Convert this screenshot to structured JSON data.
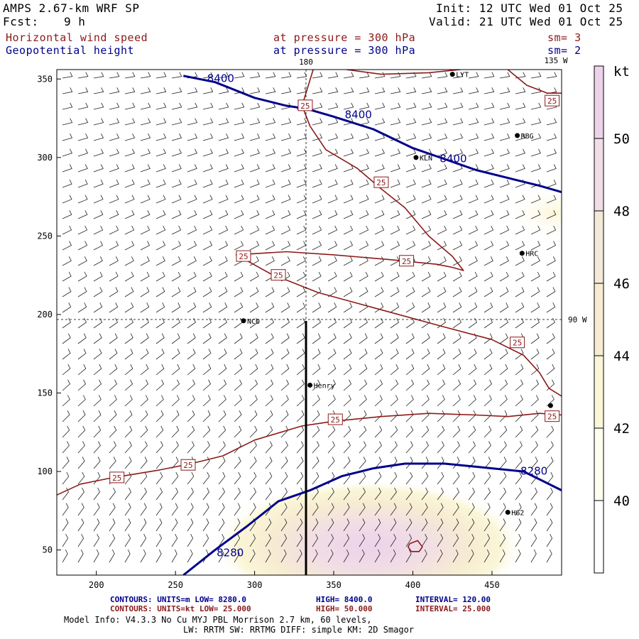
{
  "header": {
    "model": "AMPS 2.67-km WRF SP",
    "fcst_label": "Fcst:",
    "fcst_value": "9 h",
    "init": "Init: 12 UTC Wed 01 Oct 25",
    "valid": "Valid: 21 UTC Wed 01 Oct 25",
    "field1": "Horizontal wind speed",
    "field2": "Geopotential height",
    "pressure1": "at pressure =  300 hPa",
    "pressure2": "at pressure =  300 hPa",
    "sm1": "sm= 3",
    "sm2": "sm= 2"
  },
  "map_labels": {
    "lon_top_180": "180",
    "lon_top_135w": "135 W",
    "lon_right_90w": "90 W"
  },
  "stations": [
    {
      "name": "LYT",
      "x": 425,
      "y": 353
    },
    {
      "name": "RBG",
      "x": 466,
      "y": 314
    },
    {
      "name": "KLN",
      "x": 402,
      "y": 300
    },
    {
      "name": "HRC",
      "x": 469,
      "y": 239
    },
    {
      "name": "NCO",
      "x": 293,
      "y": 196
    },
    {
      "name": "Henry",
      "x": 335,
      "y": 155
    },
    {
      "name": "HG2",
      "x": 460,
      "y": 74
    },
    {
      "name": "",
      "x": 487,
      "y": 142
    }
  ],
  "colors": {
    "height_contour": "#00008b",
    "speed_contour": "#8b1a1a",
    "shade_40": "#fffff0",
    "shade_42": "#fbf6d8",
    "shade_44": "#f7ecd2",
    "shade_46": "#f5e9d9",
    "shade_48": "#f1dde6",
    "shade_50": "#ecd3ea"
  },
  "footer": {
    "row1_a": "CONTOURS:  UNITS=m   LOW=  8280.0",
    "row1_b": "HIGH=  8400.0",
    "row1_c": "INTERVAL=   120.00",
    "row2_a": "CONTOURS:  UNITS=kt  LOW=  25.000",
    "row2_b": "HIGH=  50.000",
    "row2_c": "INTERVAL=   25.000",
    "info1": "Model Info: V4.3.3    No Cu    MYJ PBL   Morrison          2.7 km,  60 levels,",
    "info2": "LW: RRTM SW: RRTMG   DIFF: simple KM: 2D Smagor"
  },
  "chart_data": {
    "type": "contour",
    "title": "Horizontal wind speed / Geopotential height at 300 hPa",
    "xlim": [
      175,
      494
    ],
    "ylim": [
      34,
      356
    ],
    "x_ticks": [
      200,
      250,
      300,
      350,
      400,
      450
    ],
    "y_ticks": [
      50,
      100,
      150,
      200,
      250,
      300,
      350
    ],
    "colorbar": {
      "label": "kt",
      "ticks": [
        40,
        42,
        44,
        46,
        48,
        50
      ],
      "range": [
        38,
        52
      ]
    },
    "height_contours": [
      {
        "level": 8400,
        "label": "8400",
        "points": [
          [
            255,
            352
          ],
          [
            275,
            348
          ],
          [
            300,
            338
          ],
          [
            320,
            333
          ],
          [
            333,
            331
          ],
          [
            350,
            326
          ],
          [
            375,
            318
          ],
          [
            400,
            306
          ],
          [
            420,
            299
          ],
          [
            440,
            292
          ],
          [
            460,
            287
          ],
          [
            480,
            282
          ],
          [
            494,
            278
          ]
        ]
      },
      {
        "level": 8280,
        "label": "8280",
        "points": [
          [
            255,
            34
          ],
          [
            275,
            50
          ],
          [
            295,
            65
          ],
          [
            315,
            81
          ],
          [
            335,
            88
          ],
          [
            355,
            97
          ],
          [
            375,
            102
          ],
          [
            395,
            105
          ],
          [
            420,
            105
          ],
          [
            440,
            103
          ],
          [
            470,
            100
          ],
          [
            494,
            88
          ]
        ]
      }
    ],
    "height_labels": [
      {
        "text": "8400",
        "x": 270,
        "y": 348
      },
      {
        "text": "8400",
        "x": 357,
        "y": 325
      },
      {
        "text": "8400",
        "x": 417,
        "y": 297
      },
      {
        "text": "8280",
        "x": 276,
        "y": 46
      },
      {
        "text": "8280",
        "x": 468,
        "y": 98
      }
    ],
    "speed_contours": [
      {
        "level": 25,
        "points": [
          [
            175,
            85
          ],
          [
            190,
            92
          ],
          [
            210,
            96
          ],
          [
            240,
            101
          ],
          [
            260,
            105
          ],
          [
            280,
            110
          ],
          [
            300,
            120
          ],
          [
            330,
            129
          ],
          [
            350,
            132
          ],
          [
            380,
            135
          ],
          [
            410,
            137
          ],
          [
            440,
            136
          ],
          [
            460,
            135
          ],
          [
            480,
            137
          ],
          [
            494,
            136
          ]
        ]
      },
      {
        "level": 25,
        "points": [
          [
            288,
            238
          ],
          [
            320,
            240
          ],
          [
            350,
            238
          ],
          [
            385,
            235
          ],
          [
            415,
            232
          ],
          [
            425,
            230
          ],
          [
            432,
            228
          ],
          [
            425,
            237
          ],
          [
            410,
            250
          ],
          [
            395,
            268
          ],
          [
            380,
            280
          ],
          [
            365,
            293
          ],
          [
            345,
            305
          ],
          [
            335,
            320
          ],
          [
            330,
            333
          ],
          [
            337,
            356
          ]
        ]
      },
      {
        "level": 25,
        "points": [
          [
            292,
            236
          ],
          [
            310,
            226
          ],
          [
            340,
            214
          ],
          [
            380,
            203
          ],
          [
            420,
            192
          ],
          [
            450,
            184
          ],
          [
            470,
            174
          ],
          [
            480,
            163
          ],
          [
            486,
            153
          ],
          [
            494,
            148
          ]
        ]
      },
      {
        "level": 25,
        "points": [
          [
            358,
            356
          ],
          [
            380,
            353
          ],
          [
            410,
            354
          ],
          [
            430,
            356
          ]
        ]
      },
      {
        "level": 25,
        "points": [
          [
            460,
            356
          ],
          [
            472,
            346
          ],
          [
            485,
            341
          ],
          [
            494,
            341
          ]
        ]
      },
      {
        "level": 50,
        "points": [
          [
            398,
            54
          ],
          [
            403,
            56
          ],
          [
            406,
            52
          ],
          [
            404,
            49
          ],
          [
            399,
            49
          ],
          [
            397,
            52
          ],
          [
            398,
            54
          ]
        ]
      }
    ],
    "speed_labels": [
      {
        "text": "25",
        "x": 213,
        "y": 96
      },
      {
        "text": "25",
        "x": 258,
        "y": 104
      },
      {
        "text": "25",
        "x": 332,
        "y": 333
      },
      {
        "text": "25",
        "x": 380,
        "y": 284
      },
      {
        "text": "25",
        "x": 293,
        "y": 237
      },
      {
        "text": "25",
        "x": 315,
        "y": 225
      },
      {
        "text": "25",
        "x": 396,
        "y": 234
      },
      {
        "text": "25",
        "x": 466,
        "y": 182
      },
      {
        "text": "25",
        "x": 351,
        "y": 133
      },
      {
        "text": "25",
        "x": 488,
        "y": 135
      },
      {
        "text": "25",
        "x": 488,
        "y": 336
      }
    ]
  }
}
